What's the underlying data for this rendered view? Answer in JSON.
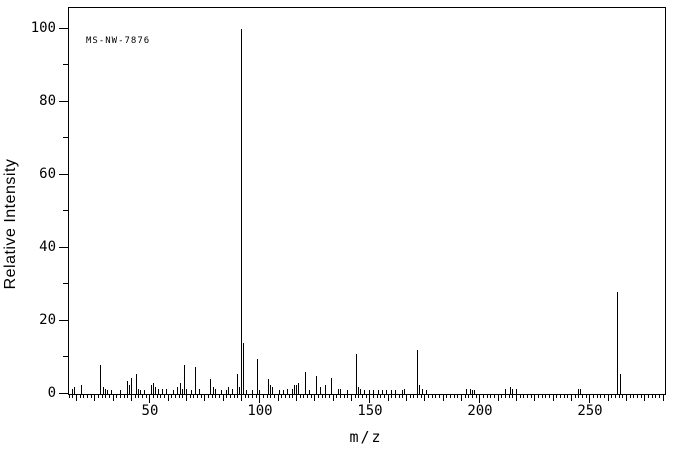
{
  "chart_data": {
    "type": "bar",
    "subtype": "mass-spectrum-stick-plot",
    "annotation": "MS-NW-7876",
    "xlabel": "m/z",
    "ylabel": "Relative Intensity",
    "xlim": [
      12.73,
      283.64
    ],
    "ylim": [
      0,
      105.8
    ],
    "x_major_ticks": [
      50,
      100,
      150,
      200,
      250
    ],
    "y_major_ticks": [
      0,
      20,
      40,
      60,
      80,
      100
    ],
    "grid": false,
    "frame": true,
    "legend": "none",
    "colors": {
      "background": "#ffffff",
      "foreground": "#000000"
    },
    "peaks": [
      [
        14,
        1.5
      ],
      [
        15,
        2
      ],
      [
        18,
        2.5
      ],
      [
        27,
        8
      ],
      [
        28,
        2
      ],
      [
        29,
        1.5
      ],
      [
        30,
        1
      ],
      [
        32,
        1
      ],
      [
        36,
        1
      ],
      [
        39,
        3.5
      ],
      [
        40,
        2.5
      ],
      [
        41,
        4.5
      ],
      [
        43,
        5.5
      ],
      [
        44,
        1.5
      ],
      [
        45,
        1
      ],
      [
        47,
        1
      ],
      [
        50,
        2.5
      ],
      [
        51,
        3
      ],
      [
        52,
        2
      ],
      [
        53,
        1.5
      ],
      [
        55,
        1.5
      ],
      [
        57,
        1.5
      ],
      [
        60,
        1
      ],
      [
        62,
        2
      ],
      [
        63,
        3
      ],
      [
        64,
        1.5
      ],
      [
        65,
        8
      ],
      [
        66,
        1.5
      ],
      [
        68,
        1
      ],
      [
        70,
        7.5
      ],
      [
        72,
        1.5
      ],
      [
        77,
        4
      ],
      [
        78,
        2
      ],
      [
        79,
        1.5
      ],
      [
        82,
        1
      ],
      [
        84,
        1
      ],
      [
        85,
        2
      ],
      [
        87,
        1.5
      ],
      [
        89,
        5.5
      ],
      [
        90,
        2
      ],
      [
        91,
        100
      ],
      [
        92,
        14
      ],
      [
        93,
        1
      ],
      [
        96,
        1
      ],
      [
        98,
        9.5
      ],
      [
        99,
        1
      ],
      [
        103,
        4
      ],
      [
        104,
        2.5
      ],
      [
        105,
        2
      ],
      [
        108,
        1
      ],
      [
        110,
        1
      ],
      [
        112,
        1.5
      ],
      [
        114,
        1.5
      ],
      [
        115,
        2.5
      ],
      [
        116,
        2.5
      ],
      [
        117,
        3
      ],
      [
        120,
        6
      ],
      [
        122,
        1
      ],
      [
        125,
        5
      ],
      [
        127,
        2
      ],
      [
        129,
        2.5
      ],
      [
        132,
        4.5
      ],
      [
        135,
        1.5
      ],
      [
        136,
        1.5
      ],
      [
        139,
        1
      ],
      [
        143,
        11
      ],
      [
        144,
        2
      ],
      [
        145,
        1.5
      ],
      [
        147,
        1
      ],
      [
        149,
        1
      ],
      [
        151,
        1
      ],
      [
        153,
        1
      ],
      [
        155,
        1
      ],
      [
        157,
        1
      ],
      [
        159,
        1
      ],
      [
        161,
        1
      ],
      [
        164,
        1
      ],
      [
        165,
        1.5
      ],
      [
        171,
        12
      ],
      [
        172,
        2.5
      ],
      [
        173,
        1.5
      ],
      [
        175,
        1
      ],
      [
        193,
        1.5
      ],
      [
        195,
        1.5
      ],
      [
        196,
        1
      ],
      [
        197,
        1
      ],
      [
        211,
        1.5
      ],
      [
        213,
        2
      ],
      [
        214,
        1.5
      ],
      [
        216,
        1.5
      ],
      [
        244,
        1.5
      ],
      [
        245,
        1.5
      ],
      [
        262,
        28
      ],
      [
        263,
        5.5
      ]
    ]
  }
}
